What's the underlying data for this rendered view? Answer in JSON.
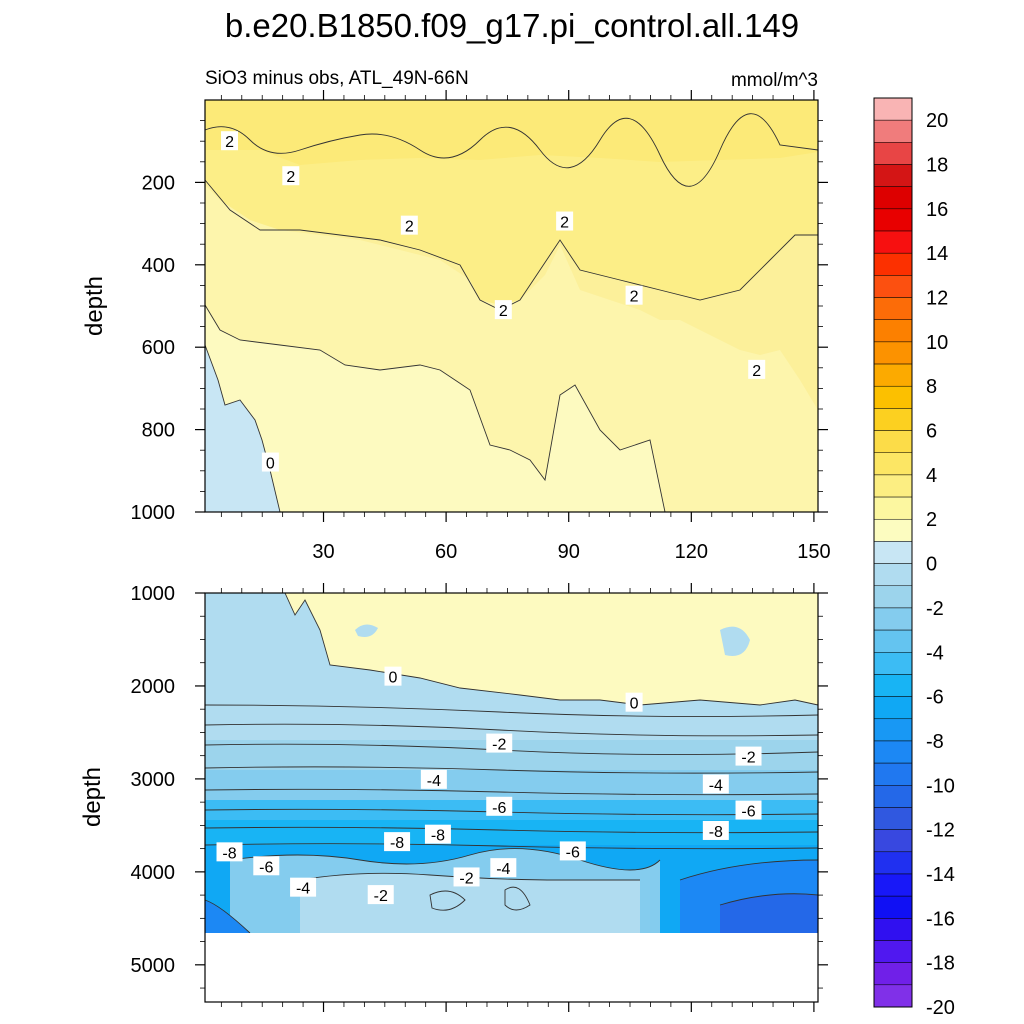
{
  "title": "b.e20.B1850.f09_g17.pi_control.all.149",
  "subtitle_left": "SiO3 minus obs, ATL_49N-66N",
  "subtitle_right": "mmol/m^3",
  "colorbar": {
    "labels": [
      "20",
      "18",
      "16",
      "14",
      "12",
      "10",
      "8",
      "6",
      "4",
      "2",
      "0",
      "-2",
      "-4",
      "-6",
      "-8",
      "-10",
      "-12",
      "-14",
      "-16",
      "-18",
      "-20"
    ],
    "colors": [
      "#f9b4b4",
      "#f07c7c",
      "#e84545",
      "#d41515",
      "#dd0000",
      "#e80000",
      "#f71010",
      "#fc3000",
      "#fc5010",
      "#fc6c08",
      "#fc8000",
      "#fc9200",
      "#fcaa00",
      "#fcc000",
      "#fcd020",
      "#fcdc48",
      "#fce664",
      "#fcee82",
      "#fcf7a0",
      "#fcfcc0",
      "#c8e6f4",
      "#b0dcf0",
      "#9cd4ec",
      "#84ccee",
      "#64c4f0",
      "#3cbcf4",
      "#18b4f4",
      "#10a8f4",
      "#1898f4",
      "#1c88f4",
      "#2078f0",
      "#2468e8",
      "#3058e0",
      "#3848e0",
      "#2030f0",
      "#1818f8",
      "#1010f4",
      "#3010f0",
      "#5018f0",
      "#7020e8",
      "#8030e8"
    ]
  },
  "chart_data": [
    {
      "type": "contour",
      "panel": "top",
      "ylabel": "depth",
      "ylim": [
        1000,
        0
      ],
      "yticks": [
        "200",
        "400",
        "600",
        "800",
        "1000"
      ],
      "ytick_values": [
        200,
        400,
        600,
        800,
        1000
      ],
      "xlim": [
        1,
        151
      ],
      "xticks": [
        "30",
        "60",
        "90",
        "120",
        "150"
      ],
      "xtick_values": [
        30,
        60,
        90,
        120,
        150
      ],
      "contour_labels": [
        {
          "text": "2",
          "x": 7,
          "y": 100
        },
        {
          "text": "2",
          "x": 22,
          "y": 185
        },
        {
          "text": "2",
          "x": 51,
          "y": 305
        },
        {
          "text": "2",
          "x": 89,
          "y": 295
        },
        {
          "text": "2",
          "x": 74,
          "y": 510
        },
        {
          "text": "2",
          "x": 106,
          "y": 475
        },
        {
          "text": "2",
          "x": 136,
          "y": 655
        },
        {
          "text": "0",
          "x": 17,
          "y": 880
        }
      ]
    },
    {
      "type": "contour",
      "panel": "bottom",
      "ylabel": "depth",
      "ylim": [
        5400,
        1000
      ],
      "yticks": [
        "1000",
        "2000",
        "3000",
        "4000",
        "5000"
      ],
      "ytick_values": [
        1000,
        2000,
        3000,
        4000,
        5000
      ],
      "xlim": [
        1,
        151
      ],
      "xticks": [],
      "xtick_values": [
        30,
        60,
        90,
        120,
        150
      ],
      "contour_labels": [
        {
          "text": "0",
          "x": 47,
          "y": 1900
        },
        {
          "text": "0",
          "x": 106,
          "y": 2180
        },
        {
          "text": "-2",
          "x": 73,
          "y": 2620
        },
        {
          "text": "-2",
          "x": 134,
          "y": 2760
        },
        {
          "text": "-4",
          "x": 57,
          "y": 3010
        },
        {
          "text": "-4",
          "x": 126,
          "y": 3060
        },
        {
          "text": "-6",
          "x": 73,
          "y": 3300
        },
        {
          "text": "-6",
          "x": 134,
          "y": 3340
        },
        {
          "text": "-8",
          "x": 58,
          "y": 3600
        },
        {
          "text": "-8",
          "x": 48,
          "y": 3680
        },
        {
          "text": "-8",
          "x": 7,
          "y": 3790
        },
        {
          "text": "-8",
          "x": 126,
          "y": 3560
        },
        {
          "text": "-6",
          "x": 16,
          "y": 3940
        },
        {
          "text": "-6",
          "x": 91,
          "y": 3780
        },
        {
          "text": "-4",
          "x": 25,
          "y": 4170
        },
        {
          "text": "-4",
          "x": 74,
          "y": 3960
        },
        {
          "text": "-2",
          "x": 44,
          "y": 4250
        },
        {
          "text": "-2",
          "x": 65,
          "y": 4060
        }
      ]
    }
  ]
}
